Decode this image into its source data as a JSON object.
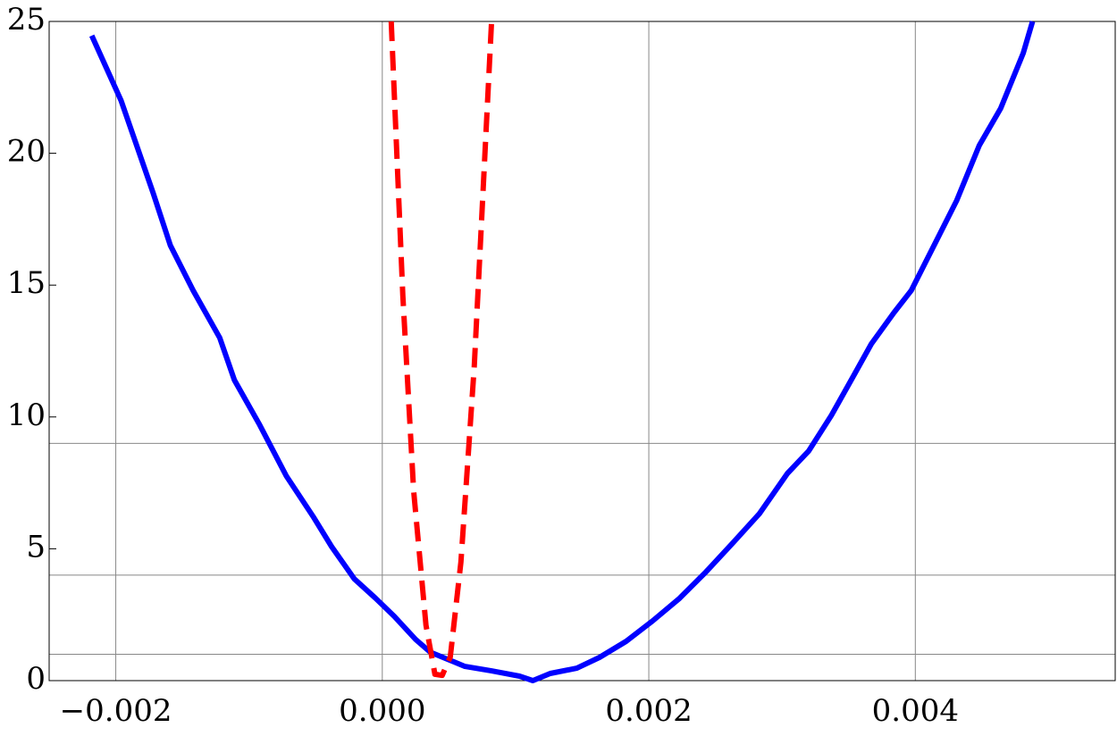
{
  "chart_data": {
    "type": "line",
    "xlim": [
      -0.0025,
      0.0055
    ],
    "ylim": [
      0,
      25
    ],
    "xticks": [
      {
        "value": -0.002,
        "label": "−0.002"
      },
      {
        "value": 0,
        "label": "0.000"
      },
      {
        "value": 0.002,
        "label": "0.002"
      },
      {
        "value": 0.004,
        "label": "0.004"
      }
    ],
    "yticks": [
      0,
      5,
      10,
      15,
      20,
      25
    ],
    "grid": true,
    "hgrid": [
      1,
      4,
      9
    ],
    "series": [
      {
        "color": "#0000ff",
        "dashed": false,
        "x": [
          -0.00218,
          -0.00196,
          -0.00172,
          -0.00159,
          -0.00142,
          -0.00122,
          -0.00111,
          -0.00092,
          -0.00072,
          -0.00052,
          -0.00038,
          -0.00021,
          -5e-05,
          9e-05,
          0.00025,
          0.00036,
          0.00049,
          0.00062,
          0.00082,
          0.00103,
          0.00113,
          0.00126,
          0.00146,
          0.00163,
          0.00183,
          0.00203,
          0.00223,
          0.00243,
          0.00263,
          0.00283,
          0.00304,
          0.0032,
          0.00337,
          0.00354,
          0.00367,
          0.00384,
          0.00397,
          0.00414,
          0.00431,
          0.00448,
          0.00464,
          0.00481,
          0.00488
        ],
        "values": [
          24.46,
          22.0,
          18.5,
          16.5,
          14.8,
          13.0,
          11.4,
          9.7,
          7.76,
          6.23,
          5.08,
          3.86,
          3.12,
          2.44,
          1.56,
          1.08,
          0.81,
          0.54,
          0.37,
          0.17,
          0,
          0.27,
          0.47,
          0.88,
          1.49,
          2.27,
          3.12,
          4.13,
          5.22,
          6.33,
          7.86,
          8.71,
          10.06,
          11.59,
          12.77,
          13.96,
          14.8,
          16.5,
          18.2,
          20.3,
          21.7,
          23.8,
          25.0
        ]
      },
      {
        "color": "#ff0000",
        "dashed": true,
        "x": [
          6.7e-05,
          0.000154,
          0.000235,
          0.000328,
          0.000395,
          0.00045,
          0.00051,
          0.00059,
          0.00069,
          0.00082
        ],
        "values": [
          25,
          14.6,
          7.2,
          2.1,
          0.24,
          0.2,
          0.9,
          4.5,
          11.9,
          25
        ]
      }
    ]
  }
}
